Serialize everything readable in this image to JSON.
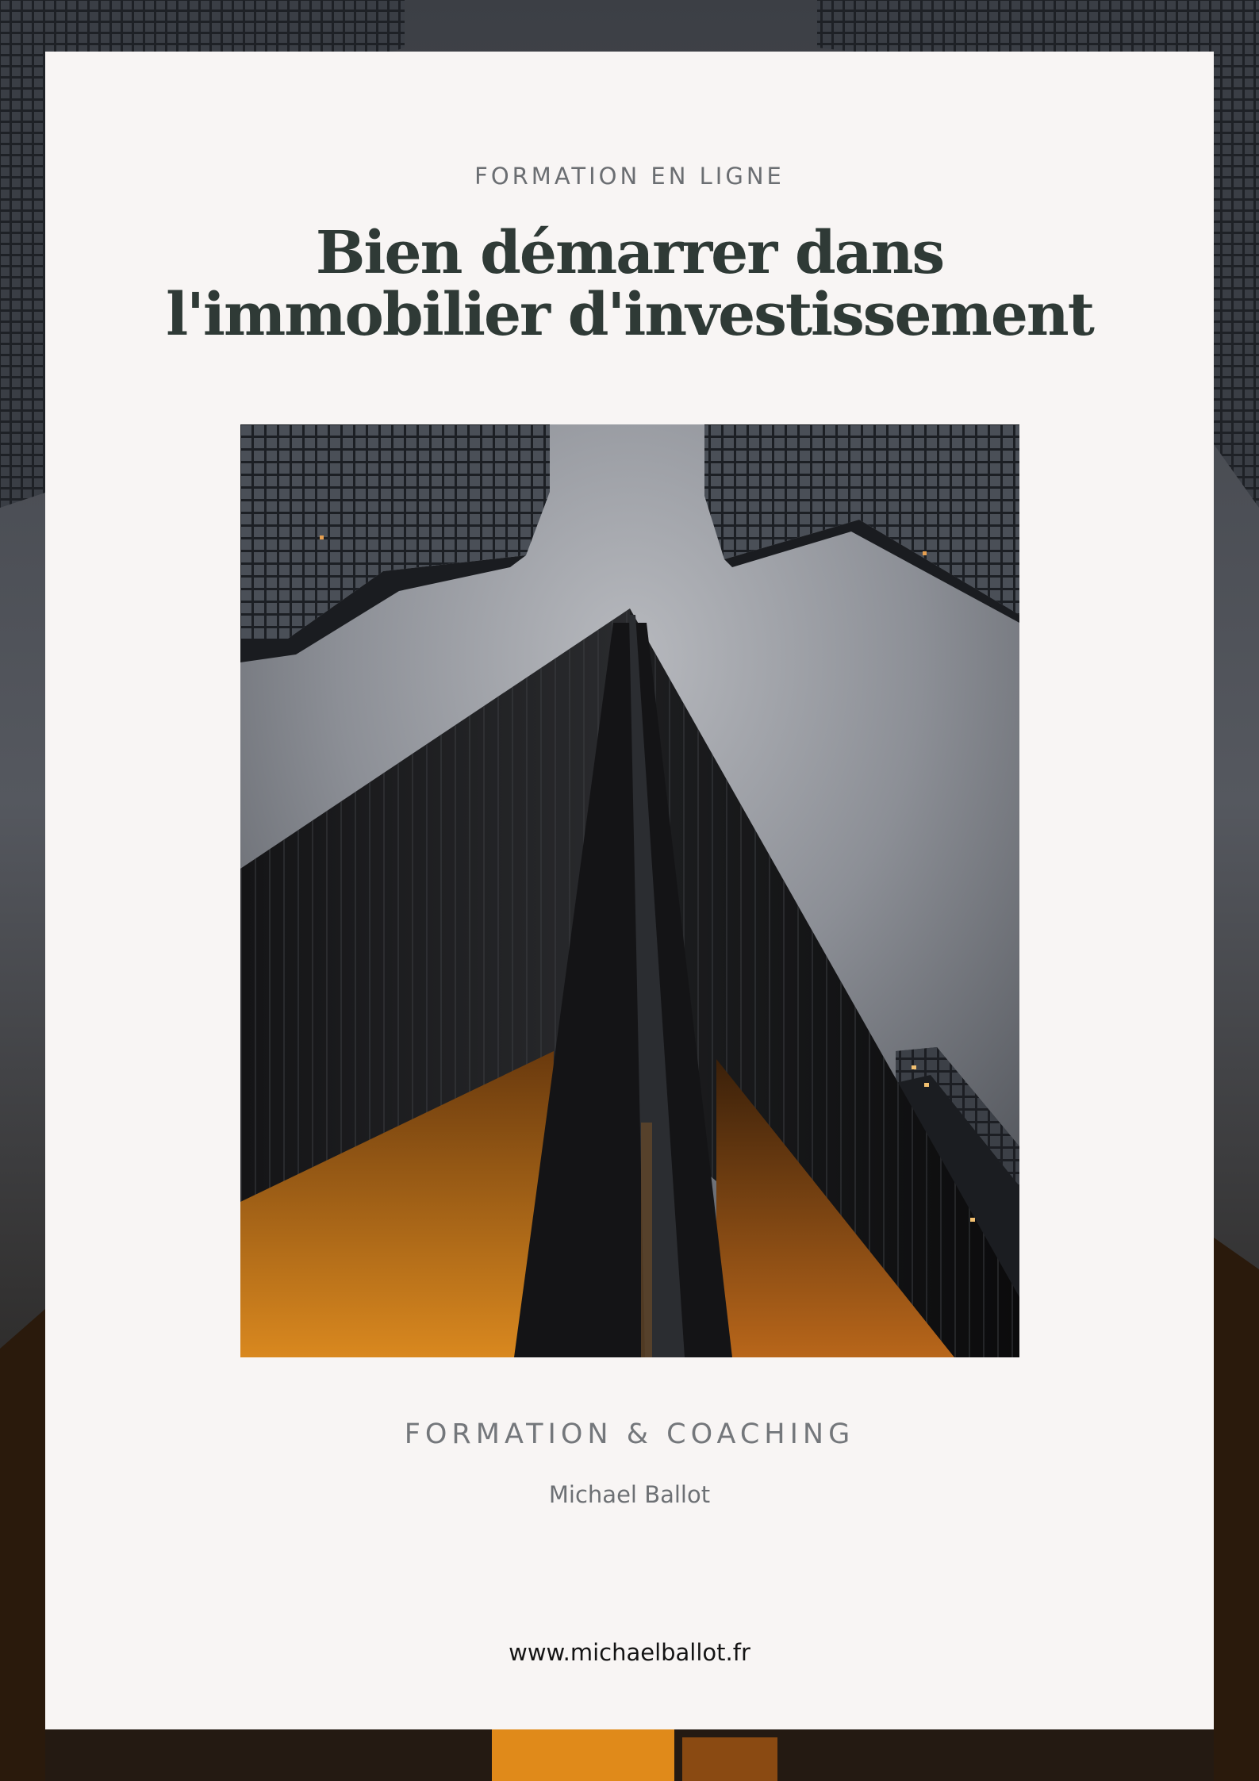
{
  "cover": {
    "eyebrow": "FORMATION EN LIGNE",
    "title_line1": "Bien démarrer dans",
    "title_line2": "l'immobilier d'investissement",
    "tagline": "FORMATION & COACHING",
    "author": "Michael Ballot",
    "website": "www.michaelballot.fr"
  },
  "colors": {
    "card_background": "#f8f5f4",
    "title": "#2f3a36",
    "muted_text": "#6b6e72",
    "website_text": "#141414",
    "accent_orange": "#d9881f"
  }
}
